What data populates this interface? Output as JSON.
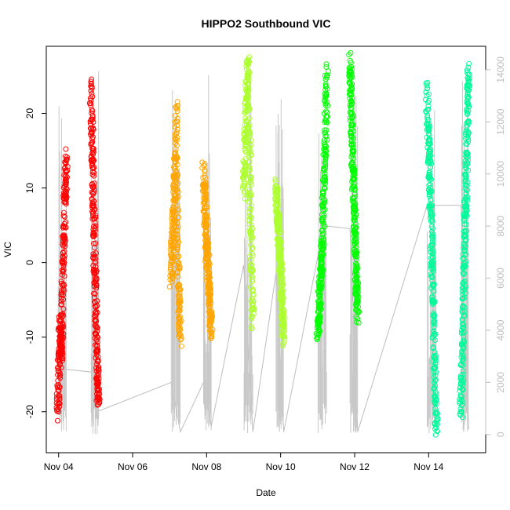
{
  "chart_data": {
    "type": "scatter",
    "title": "HIPPO2 Southbound VIC",
    "xlabel": "Date",
    "ylabel": "VIC",
    "x_range": [
      "2009-11-03T16:00",
      "2009-11-15T13:00"
    ],
    "ylim": [
      -25.5,
      29.0
    ],
    "y_ticks": [
      -20,
      -10,
      0,
      10,
      20
    ],
    "x_ticks": [
      "Nov 04",
      "Nov 06",
      "Nov 08",
      "Nov 10",
      "Nov 12",
      "Nov 14"
    ],
    "x_tick_dates": [
      "2009-11-04",
      "2009-11-06",
      "2009-11-08",
      "2009-11-10",
      "2009-11-12",
      "2009-11-14"
    ],
    "y2_ticks": [
      0,
      2000,
      4000,
      6000,
      8000,
      10000,
      12000,
      14000
    ],
    "y2_range": [
      -700,
      14900
    ],
    "grid": false,
    "series": [
      {
        "color": "#ff0000",
        "flights": [
          {
            "start": "2009-11-03T23:30",
            "end": "2009-11-04T05:00",
            "y_path": [
              -20,
              -18,
              -15,
              -12,
              -10,
              -8,
              -12,
              -13,
              -10,
              -7,
              -3,
              0,
              2,
              5,
              8,
              10,
              12,
              14
            ]
          },
          {
            "start": "2009-11-04T21:00",
            "end": "2009-11-05T02:00",
            "y_path": [
              24,
              20,
              15,
              12,
              8,
              4,
              0,
              -4,
              -8,
              -12,
              -15,
              -17,
              -18
            ]
          }
        ]
      },
      {
        "color": "#ffa500",
        "flights": [
          {
            "start": "2009-11-07T01:00",
            "end": "2009-11-07T07:00",
            "y_path": [
              -2,
              0,
              2,
              4,
              6,
              8,
              10,
              13,
              16,
              21,
              10,
              4,
              0,
              -3,
              -6,
              -8,
              -10
            ]
          },
          {
            "start": "2009-11-07T22:00",
            "end": "2009-11-08T03:00",
            "y_path": [
              12,
              10,
              8,
              5,
              3,
              1,
              0,
              -2,
              -4,
              -6,
              -8,
              -9
            ]
          }
        ]
      },
      {
        "color": "#adff2f",
        "flights": [
          {
            "start": "2009-11-09T00:00",
            "end": "2009-11-09T06:00",
            "y_path": [
              10,
              12,
              15,
              18,
              21,
              24,
              27,
              22,
              16,
              10,
              5,
              0,
              -4,
              -8
            ]
          },
          {
            "start": "2009-11-09T21:00",
            "end": "2009-11-10T02:00",
            "y_path": [
              10,
              8,
              6,
              4,
              2,
              0,
              -2,
              -5,
              -8,
              -10
            ]
          }
        ]
      },
      {
        "color": "#00ff00",
        "flights": [
          {
            "start": "2009-11-11T00:00",
            "end": "2009-11-11T06:00",
            "y_path": [
              -10,
              -8,
              -6,
              -4,
              -2,
              0,
              2,
              5,
              9,
              13,
              17,
              21,
              26
            ]
          },
          {
            "start": "2009-11-11T21:00",
            "end": "2009-11-12T02:00",
            "y_path": [
              27,
              24,
              21,
              18,
              15,
              12,
              9,
              6,
              3,
              0,
              -3,
              -5,
              -7
            ]
          }
        ]
      },
      {
        "color": "#00fa9a",
        "flights": [
          {
            "start": "2009-11-13T23:00",
            "end": "2009-11-14T05:00",
            "y_path": [
              23,
              20,
              17,
              15,
              13,
              10,
              7,
              4,
              1,
              -2,
              -5,
              -9,
              -13,
              -17,
              -20,
              -22
            ]
          },
          {
            "start": "2009-11-14T21:00",
            "end": "2009-11-15T02:00",
            "y_path": [
              -20,
              -17,
              -13,
              -9,
              -5,
              -1,
              3,
              7,
              11,
              15,
              19,
              23,
              26
            ]
          }
        ]
      }
    ],
    "altitude_trace": {
      "color": "#bdbdbd",
      "segments": [
        {
          "t": [
            "2009-11-03T23:00",
            "2009-11-04T05:00",
            "2009-11-04T21:00",
            "2009-11-05T02:00",
            "2009-11-07T01:00",
            "2009-11-07T07:00",
            "2009-11-07T22:00",
            "2009-11-08T03:00",
            "2009-11-09T00:00",
            "2009-11-09T06:00",
            "2009-11-09T21:00",
            "2009-11-10T02:00",
            "2009-11-11T00:00",
            "2009-11-11T06:00",
            "2009-11-11T21:00",
            "2009-11-12T02:00",
            "2009-11-13T23:00",
            "2009-11-14T05:00",
            "2009-11-14T21:00",
            "2009-11-15T02:00"
          ],
          "alt": [
            1000,
            2500,
            2400,
            900,
            2000,
            100,
            2000,
            300,
            6500,
            100,
            6200,
            100,
            6800,
            8000,
            7900,
            100,
            8800,
            8800,
            8800,
            200
          ]
        }
      ]
    }
  }
}
